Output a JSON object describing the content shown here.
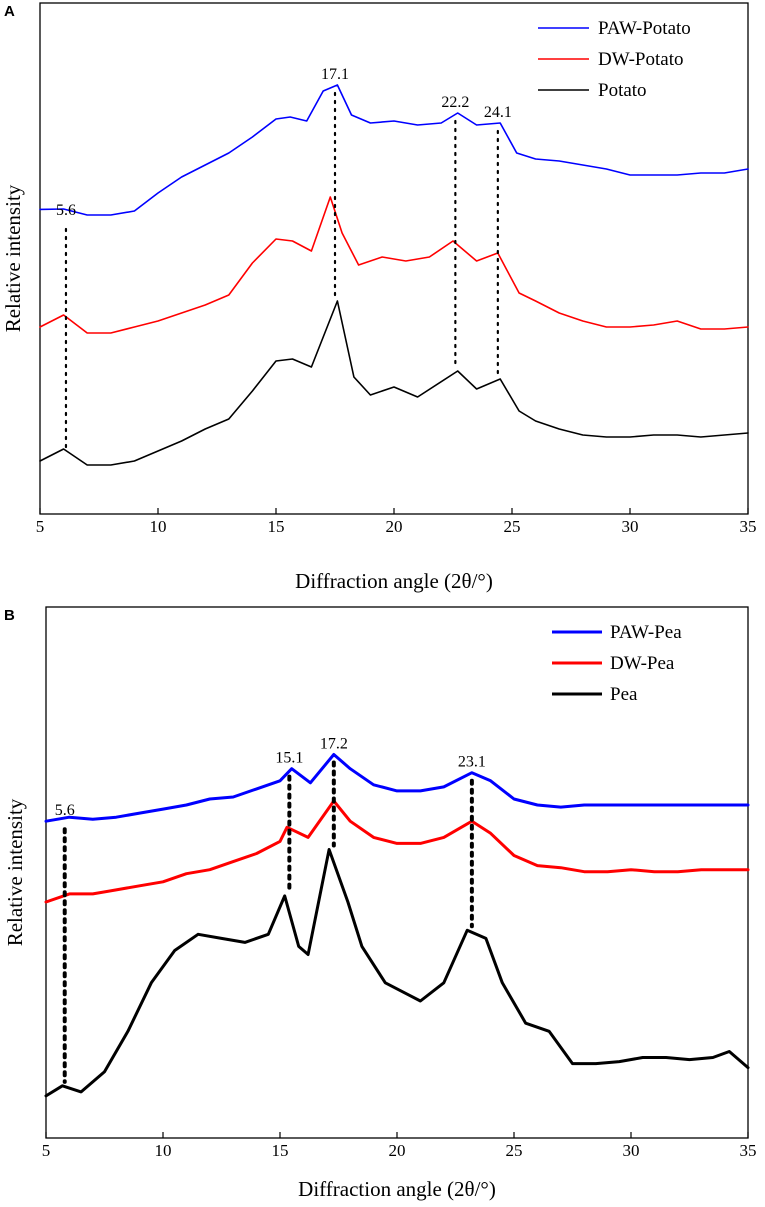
{
  "chart_data": [
    {
      "panel": "A",
      "type": "line",
      "xlabel": "Diffraction angle (2θ/°)",
      "ylabel": "Relative intensity",
      "xlim": [
        5,
        35
      ],
      "ylim": [
        0,
        1
      ],
      "xticks": [
        5,
        10,
        15,
        20,
        25,
        30,
        35
      ],
      "legend": "top-right",
      "series": [
        {
          "name": "PAW-Potato",
          "color": "#0000ff",
          "linewidth": 1.6,
          "x": [
            5,
            6,
            7,
            8,
            9,
            10,
            11,
            12,
            13,
            14,
            15,
            15.6,
            16.3,
            17,
            17.6,
            18.2,
            19,
            20,
            21,
            22,
            22.7,
            23.5,
            24.5,
            25.2,
            26,
            27,
            28,
            29,
            30,
            31,
            32,
            33,
            34,
            35
          ],
          "y": [
            0.689,
            0.69,
            0.675,
            0.675,
            0.685,
            0.73,
            0.77,
            0.8,
            0.83,
            0.87,
            0.915,
            0.92,
            0.91,
            0.985,
            1.0,
            0.925,
            0.905,
            0.91,
            0.9,
            0.905,
            0.93,
            0.9,
            0.905,
            0.83,
            0.815,
            0.81,
            0.8,
            0.79,
            0.775,
            0.775,
            0.775,
            0.78,
            0.78,
            0.79
          ]
        },
        {
          "name": "DW-Potato",
          "color": "#ff0000",
          "linewidth": 1.6,
          "x": [
            5,
            6,
            7,
            8,
            9,
            10,
            11,
            12,
            13,
            14,
            15,
            15.7,
            16.5,
            17.3,
            17.8,
            18.5,
            19.5,
            20.5,
            21.5,
            22.5,
            23.5,
            24.4,
            25.3,
            26,
            27,
            28,
            29,
            30,
            31,
            32,
            33,
            34,
            35
          ],
          "y": [
            0.395,
            0.425,
            0.38,
            0.38,
            0.395,
            0.41,
            0.43,
            0.45,
            0.475,
            0.555,
            0.615,
            0.61,
            0.585,
            0.72,
            0.63,
            0.55,
            0.57,
            0.56,
            0.57,
            0.61,
            0.56,
            0.58,
            0.48,
            0.46,
            0.43,
            0.41,
            0.395,
            0.395,
            0.4,
            0.41,
            0.39,
            0.39,
            0.395
          ]
        },
        {
          "name": "Potato",
          "color": "#000000",
          "linewidth": 1.6,
          "x": [
            5,
            6,
            7,
            8,
            9,
            10,
            11,
            12,
            13,
            14,
            15,
            15.7,
            16.5,
            17.6,
            18.3,
            19,
            20,
            21,
            22.7,
            23.5,
            24.5,
            25.3,
            26,
            27,
            28,
            29,
            30,
            31,
            32,
            33,
            34,
            35
          ],
          "y": [
            0.06,
            0.09,
            0.05,
            0.05,
            0.06,
            0.085,
            0.11,
            0.14,
            0.165,
            0.235,
            0.31,
            0.315,
            0.295,
            0.46,
            0.27,
            0.225,
            0.245,
            0.22,
            0.285,
            0.24,
            0.265,
            0.185,
            0.16,
            0.14,
            0.125,
            0.12,
            0.12,
            0.125,
            0.125,
            0.12,
            0.125,
            0.13
          ]
        }
      ],
      "annotations": [
        {
          "label": "5.6",
          "x": 6.1,
          "y_top": 0.66,
          "y_bottom": 0.085
        },
        {
          "label": "17.1",
          "x": 17.5,
          "y_top": 1.0,
          "y_bottom": 0.46
        },
        {
          "label": "22.2",
          "x": 22.6,
          "y_top": 0.93,
          "y_bottom": 0.285
        },
        {
          "label": "24.1",
          "x": 24.4,
          "y_top": 0.905,
          "y_bottom": 0.265
        }
      ]
    },
    {
      "panel": "B",
      "type": "line",
      "xlabel": "Diffraction angle (2θ/°)",
      "ylabel": "Relative intensity",
      "xlim": [
        5,
        35
      ],
      "ylim": [
        0,
        1
      ],
      "xticks": [
        5,
        10,
        15,
        20,
        25,
        30,
        35
      ],
      "legend": "top-right",
      "series": [
        {
          "name": "PAW-Pea",
          "color": "#0000ff",
          "linewidth": 3,
          "x": [
            5,
            6,
            7,
            8,
            9,
            10,
            11,
            12,
            13,
            14,
            15,
            15.5,
            16.3,
            17.3,
            18,
            19,
            20,
            21,
            22,
            23.2,
            24,
            25,
            26,
            27,
            28,
            29,
            30,
            31,
            32,
            33,
            34,
            35
          ],
          "y": [
            0.7,
            0.71,
            0.705,
            0.71,
            0.72,
            0.73,
            0.74,
            0.755,
            0.76,
            0.78,
            0.8,
            0.83,
            0.795,
            0.865,
            0.83,
            0.79,
            0.775,
            0.775,
            0.785,
            0.82,
            0.8,
            0.755,
            0.74,
            0.735,
            0.74,
            0.74,
            0.74,
            0.74,
            0.74,
            0.74,
            0.74,
            0.74
          ]
        },
        {
          "name": "DW-Pea",
          "color": "#ff0000",
          "linewidth": 3,
          "x": [
            5,
            6,
            7,
            8,
            9,
            10,
            11,
            12,
            13,
            14,
            15,
            15.3,
            16.2,
            17.3,
            18,
            19,
            20,
            21,
            22,
            23.2,
            24,
            25,
            26,
            27,
            28,
            29,
            30,
            31,
            32,
            33,
            34,
            35
          ],
          "y": [
            0.5,
            0.52,
            0.52,
            0.53,
            0.54,
            0.55,
            0.57,
            0.58,
            0.6,
            0.62,
            0.65,
            0.685,
            0.66,
            0.75,
            0.7,
            0.66,
            0.645,
            0.645,
            0.66,
            0.7,
            0.67,
            0.615,
            0.59,
            0.585,
            0.575,
            0.575,
            0.58,
            0.575,
            0.575,
            0.58,
            0.58,
            0.58
          ]
        },
        {
          "name": "Pea",
          "color": "#000000",
          "linewidth": 3,
          "x": [
            5,
            5.7,
            6.5,
            7.5,
            8.5,
            9.5,
            10.5,
            11.5,
            12.5,
            13.5,
            14.5,
            15.2,
            15.8,
            16.2,
            17.1,
            17.9,
            18.5,
            19.5,
            20.5,
            21,
            22,
            23,
            23.8,
            24.5,
            25.5,
            26.5,
            27.5,
            28.5,
            29.5,
            30.5,
            31.5,
            32.5,
            33.5,
            34.2,
            35
          ],
          "y": [
            0.02,
            0.045,
            0.03,
            0.08,
            0.18,
            0.3,
            0.38,
            0.42,
            0.41,
            0.4,
            0.42,
            0.515,
            0.39,
            0.37,
            0.63,
            0.5,
            0.39,
            0.3,
            0.27,
            0.255,
            0.3,
            0.43,
            0.41,
            0.3,
            0.2,
            0.18,
            0.1,
            0.1,
            0.105,
            0.115,
            0.115,
            0.11,
            0.115,
            0.13,
            0.09
          ]
        }
      ],
      "annotations": [
        {
          "label": "5.6",
          "x": 5.8,
          "y_top": 0.7,
          "y_bottom": 0.045
        },
        {
          "label": "15.1",
          "x": 15.4,
          "y_top": 0.83,
          "y_bottom": 0.515
        },
        {
          "label": "17.2",
          "x": 17.3,
          "y_top": 0.865,
          "y_bottom": 0.63
        },
        {
          "label": "23.1",
          "x": 23.2,
          "y_top": 0.82,
          "y_bottom": 0.43
        }
      ]
    }
  ]
}
